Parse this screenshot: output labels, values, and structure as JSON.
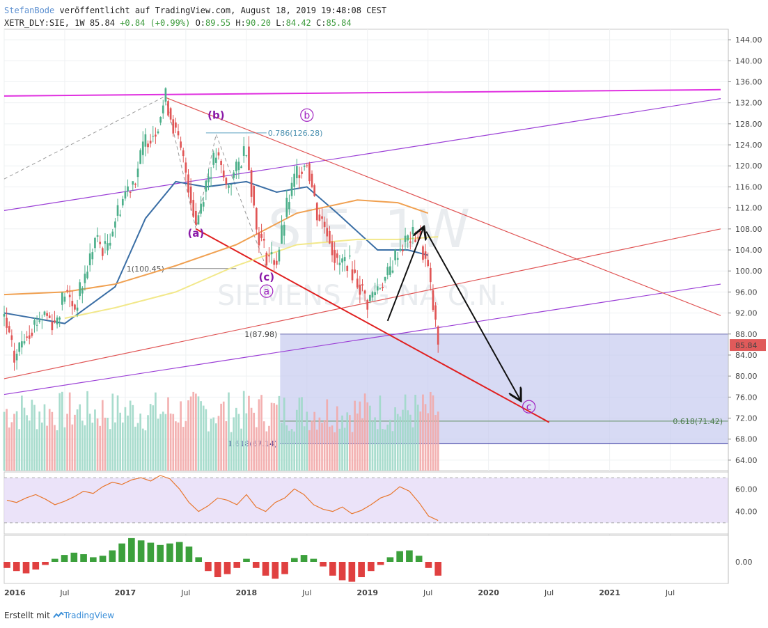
{
  "header": {
    "author": "StefanBode",
    "published": "veröffentlicht auf TradingView.com, August 18, 2019 19:48:08 CEST",
    "symbol": "XETR_DLY:SIE, 1W",
    "last": "85.84",
    "change": "+0.84 (+0.99%)",
    "o_label": "O:",
    "o_value": "89.55",
    "h_label": "H:",
    "h_value": "90.20",
    "l_label": "L:",
    "l_value": "84.42",
    "c_label": "C:",
    "c_value": "85.84"
  },
  "footer": {
    "created_with": "Erstellt mit",
    "brand": "TradingView"
  },
  "watermark": {
    "symbol": "SIE, 1W",
    "name": "SIEMENS AG NA O.N."
  },
  "colors": {
    "up": "#4caf8a",
    "down": "#e05555",
    "sma_fast": "#3a6ea5",
    "sma_mid": "#f0a050",
    "sma_slow": "#f2e88a",
    "channel_purple": "#9b3fd6",
    "magenta": "#e030e0",
    "fib_box": "#c6cbf0",
    "rsi": "#e8772e",
    "rsi_bg": "#e6dcf7",
    "macd_up": "#3ca03c",
    "macd_down": "#e04040",
    "price_tag": "#e05a5a"
  },
  "chart_data": {
    "type": "candlestick",
    "timeframe": "1W",
    "price_axis": {
      "min": 62,
      "max": 146,
      "ticks": [
        64,
        68,
        72,
        76,
        80,
        84,
        88,
        92,
        96,
        100,
        104,
        108,
        112,
        116,
        120,
        124,
        128,
        132,
        136,
        140,
        144
      ]
    },
    "time_axis": {
      "labels": [
        "2016",
        "Jul",
        "2017",
        "Jul",
        "2018",
        "Jul",
        "2019",
        "Jul",
        "2020",
        "Jul",
        "2021",
        "Jul"
      ]
    },
    "last_price_tag": "85.84",
    "price_path": [
      {
        "date": "2016-01",
        "value": 91
      },
      {
        "date": "2016-02",
        "value": 83
      },
      {
        "date": "2016-03",
        "value": 88
      },
      {
        "date": "2016-04",
        "value": 90
      },
      {
        "date": "2016-05",
        "value": 92
      },
      {
        "date": "2016-06",
        "value": 90
      },
      {
        "date": "2016-07",
        "value": 96
      },
      {
        "date": "2016-08",
        "value": 93
      },
      {
        "date": "2016-09",
        "value": 99
      },
      {
        "date": "2016-10",
        "value": 106
      },
      {
        "date": "2016-11",
        "value": 104
      },
      {
        "date": "2016-12",
        "value": 110
      },
      {
        "date": "2017-01",
        "value": 115
      },
      {
        "date": "2017-02",
        "value": 118
      },
      {
        "date": "2017-03",
        "value": 125
      },
      {
        "date": "2017-04",
        "value": 127
      },
      {
        "date": "2017-05",
        "value": 133
      },
      {
        "date": "2017-06",
        "value": 126
      },
      {
        "date": "2017-07",
        "value": 119
      },
      {
        "date": "2017-08",
        "value": 109
      },
      {
        "date": "2017-09",
        "value": 117
      },
      {
        "date": "2017-10",
        "value": 122
      },
      {
        "date": "2017-11",
        "value": 116
      },
      {
        "date": "2017-12",
        "value": 119
      },
      {
        "date": "2018-01",
        "value": 124
      },
      {
        "date": "2018-02",
        "value": 108
      },
      {
        "date": "2018-03",
        "value": 103
      },
      {
        "date": "2018-04",
        "value": 102
      },
      {
        "date": "2018-05",
        "value": 112
      },
      {
        "date": "2018-06",
        "value": 119
      },
      {
        "date": "2018-07",
        "value": 121
      },
      {
        "date": "2018-08",
        "value": 111
      },
      {
        "date": "2018-09",
        "value": 108
      },
      {
        "date": "2018-10",
        "value": 101
      },
      {
        "date": "2018-11",
        "value": 102
      },
      {
        "date": "2018-12",
        "value": 98
      },
      {
        "date": "2019-01",
        "value": 94
      },
      {
        "date": "2019-02",
        "value": 97
      },
      {
        "date": "2019-03",
        "value": 99
      },
      {
        "date": "2019-04",
        "value": 104
      },
      {
        "date": "2019-05",
        "value": 106
      },
      {
        "date": "2019-06",
        "value": 107
      },
      {
        "date": "2019-07",
        "value": 100
      },
      {
        "date": "2019-08",
        "value": 85.84
      }
    ],
    "moving_averages": [
      {
        "name": "",
        "color": "#3a6ea5",
        "points": [
          {
            "date": "2016-01",
            "value": 92
          },
          {
            "date": "2016-07",
            "value": 90
          },
          {
            "date": "2016-12",
            "value": 97
          },
          {
            "date": "2017-03",
            "value": 110
          },
          {
            "date": "2017-06",
            "value": 117
          },
          {
            "date": "2017-09",
            "value": 116
          },
          {
            "date": "2018-01",
            "value": 117
          },
          {
            "date": "2018-04",
            "value": 115
          },
          {
            "date": "2018-07",
            "value": 116
          },
          {
            "date": "2018-10",
            "value": 111
          },
          {
            "date": "2019-02",
            "value": 104
          },
          {
            "date": "2019-05",
            "value": 104
          },
          {
            "date": "2019-07",
            "value": 103
          }
        ]
      },
      {
        "name": "",
        "color": "#f0a050",
        "points": [
          {
            "date": "2016-01",
            "value": 95.5
          },
          {
            "date": "2016-07",
            "value": 96
          },
          {
            "date": "2016-12",
            "value": 97.5
          },
          {
            "date": "2017-06",
            "value": 101
          },
          {
            "date": "2017-12",
            "value": 105
          },
          {
            "date": "2018-06",
            "value": 111
          },
          {
            "date": "2018-12",
            "value": 113.5
          },
          {
            "date": "2019-04",
            "value": 113
          },
          {
            "date": "2019-07",
            "value": 111
          }
        ]
      },
      {
        "name": "",
        "color": "#f2e88a",
        "points": [
          {
            "date": "2016-07",
            "value": 91
          },
          {
            "date": "2016-12",
            "value": 93
          },
          {
            "date": "2017-06",
            "value": 96
          },
          {
            "date": "2017-12",
            "value": 101
          },
          {
            "date": "2018-06",
            "value": 105
          },
          {
            "date": "2018-12",
            "value": 106
          },
          {
            "date": "2019-04",
            "value": 106
          },
          {
            "date": "2019-08",
            "value": 106.5
          }
        ]
      }
    ],
    "trendlines": [
      {
        "name": "",
        "color": "#e030e0",
        "from": {
          "date": "2016-01",
          "value": 133.3
        },
        "to": {
          "date": "2021-12",
          "value": 134.5
        }
      },
      {
        "name": "",
        "color": "#9b3fd6",
        "from": {
          "date": "2016-01",
          "value": 111.5
        },
        "to": {
          "date": "2021-12",
          "value": 132.8
        }
      },
      {
        "name": "",
        "color": "#9b3fd6",
        "from": {
          "date": "2016-01",
          "value": 76.5
        },
        "to": {
          "date": "2021-12",
          "value": 97.5
        }
      },
      {
        "name": "",
        "color": "#e05555",
        "from": {
          "date": "2016-01",
          "value": 79.5
        },
        "to": {
          "date": "2021-12",
          "value": 108
        }
      },
      {
        "name": "",
        "color": "#e05555",
        "from": {
          "date": "2017-05",
          "value": 133
        },
        "to": {
          "date": "2021-12",
          "value": 91.5
        }
      },
      {
        "name": "",
        "color": "#e02020",
        "from": {
          "date": "2017-08",
          "value": 108
        },
        "to": {
          "date": "2020-07",
          "value": 71.2
        }
      }
    ],
    "wave_labels": [
      {
        "text": "(a)",
        "date": "2017-08",
        "value": 106.5
      },
      {
        "text": "(b)",
        "date": "2017-10",
        "value": 129
      },
      {
        "text": "(c)",
        "date": "2018-03",
        "value": 98.2
      },
      {
        "text": "a",
        "date": "2018-03",
        "value": 95.5
      },
      {
        "text": "b",
        "date": "2018-07",
        "value": 129
      },
      {
        "text": "c",
        "date": "2020-05",
        "value": 73.5
      }
    ],
    "fib_levels": [
      {
        "label": "0.786(126.28)",
        "value": 126.28
      },
      {
        "label": "1(100.45)",
        "value": 100.45
      },
      {
        "label": "1(87.98)",
        "value": 87.98
      },
      {
        "label": "0.618(71.42)",
        "value": 71.42
      },
      {
        "label": "1.618(67.14)",
        "value": 67.14
      }
    ],
    "rsi": {
      "ticks": [
        "60.00",
        "40.00"
      ],
      "levels": [
        70,
        30
      ],
      "values": [
        50,
        48,
        52,
        55,
        51,
        46,
        49,
        53,
        58,
        56,
        62,
        66,
        64,
        68,
        70,
        67,
        72,
        69,
        60,
        48,
        40,
        45,
        52,
        50,
        46,
        55,
        44,
        40,
        48,
        52,
        60,
        55,
        46,
        42,
        40,
        44,
        38,
        41,
        46,
        52,
        55,
        62,
        58,
        48,
        36,
        32
      ]
    },
    "macd_histogram": {
      "ticks": [
        "0.00"
      ],
      "values": [
        -0.8,
        -1.2,
        -1.5,
        -1.0,
        -0.4,
        0.4,
        0.9,
        1.2,
        1.0,
        0.6,
        0.8,
        1.5,
        2.4,
        3.1,
        2.8,
        2.5,
        2.2,
        2.4,
        2.6,
        2.0,
        0.6,
        -1.2,
        -2.0,
        -1.6,
        -0.8,
        0.4,
        -0.8,
        -1.8,
        -2.2,
        -1.6,
        0.5,
        0.9,
        0.4,
        -0.6,
        -1.8,
        -2.4,
        -2.6,
        -2.0,
        -1.2,
        -0.4,
        0.6,
        1.4,
        1.5,
        0.8,
        -0.8,
        -1.8
      ]
    }
  }
}
